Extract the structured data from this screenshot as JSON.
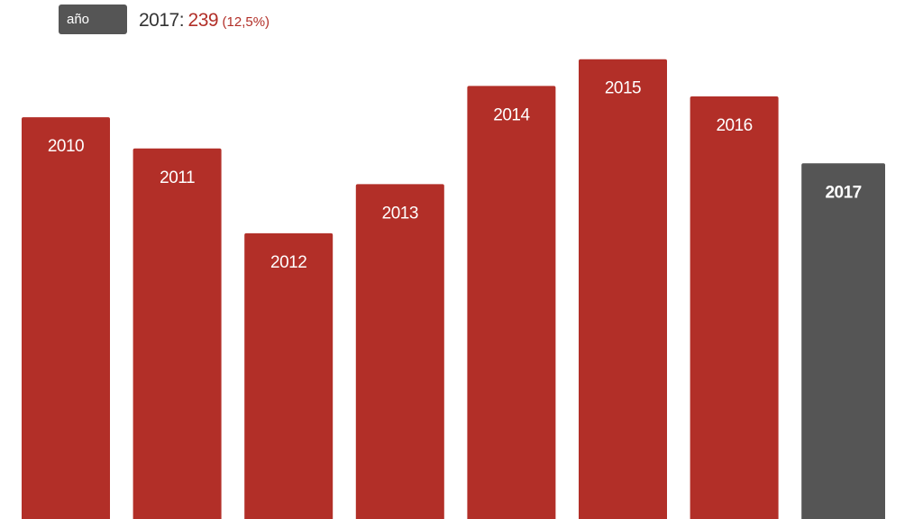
{
  "controls": {
    "year_button_label": "año"
  },
  "readout": {
    "year": "2017",
    "separator": ":",
    "value": "239",
    "percent": "(12,5%)"
  },
  "colors": {
    "bar": "#b22f28",
    "highlight": "#555555",
    "accent_text": "#b22f28"
  },
  "chart_data": {
    "type": "bar",
    "categories": [
      "2010",
      "2011",
      "2012",
      "2013",
      "2014",
      "2015",
      "2016",
      "2017"
    ],
    "values": [
      270,
      249,
      192,
      225,
      291,
      309,
      284,
      239
    ],
    "highlighted": "2017",
    "ylim": [
      0,
      330
    ],
    "title": "",
    "xlabel": "",
    "ylabel": "",
    "grid": false
  }
}
